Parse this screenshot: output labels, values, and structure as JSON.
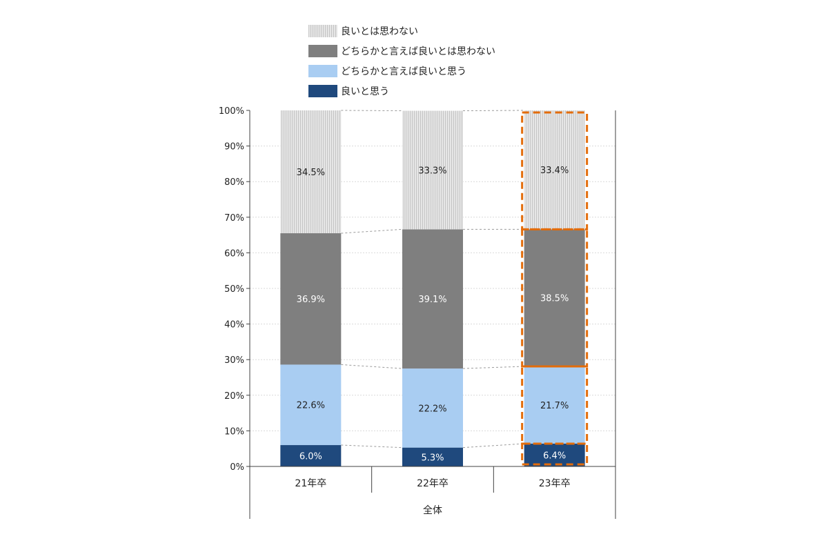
{
  "chart_data": {
    "type": "bar",
    "stacked": true,
    "percent_stacked": true,
    "categories": [
      "21年卒",
      "22年卒",
      "23年卒"
    ],
    "group_label": "全体",
    "series": [
      {
        "name": "良いと思う",
        "values": [
          6.0,
          5.3,
          6.4
        ],
        "labels": [
          "6.0%",
          "5.3%",
          "6.4%"
        ],
        "color": "#1f497d",
        "label_color": "#ffffff"
      },
      {
        "name": "どちらかと言えば良いと思う",
        "values": [
          22.6,
          22.2,
          21.7
        ],
        "labels": [
          "22.6%",
          "22.2%",
          "21.7%"
        ],
        "color": "#a9cdf2",
        "label_color": "#222222"
      },
      {
        "name": "どちらかと言えば良いとは思わない",
        "values": [
          36.9,
          39.1,
          38.5
        ],
        "labels": [
          "36.9%",
          "39.1%",
          "38.5%"
        ],
        "color": "#7f7f7f",
        "label_color": "#ffffff"
      },
      {
        "name": "良いとは思わない",
        "values": [
          34.5,
          33.3,
          33.4
        ],
        "labels": [
          "34.5%",
          "33.3%",
          "33.4%"
        ],
        "color": "#dadada",
        "label_color": "#222222"
      }
    ],
    "legend_order": [
      "良いとは思わない",
      "どちらかと言えば良いとは思わない",
      "どちらかと言えば良いと思う",
      "良いと思う"
    ],
    "legend_position": "top",
    "ylim": [
      0,
      100
    ],
    "yticks": [
      "0%",
      "10%",
      "20%",
      "30%",
      "40%",
      "50%",
      "60%",
      "70%",
      "80%",
      "90%",
      "100%"
    ],
    "grid": true,
    "series_connector_lines": true,
    "highlighted_category": "23年卒",
    "highlight_color": "#e36c0a"
  }
}
